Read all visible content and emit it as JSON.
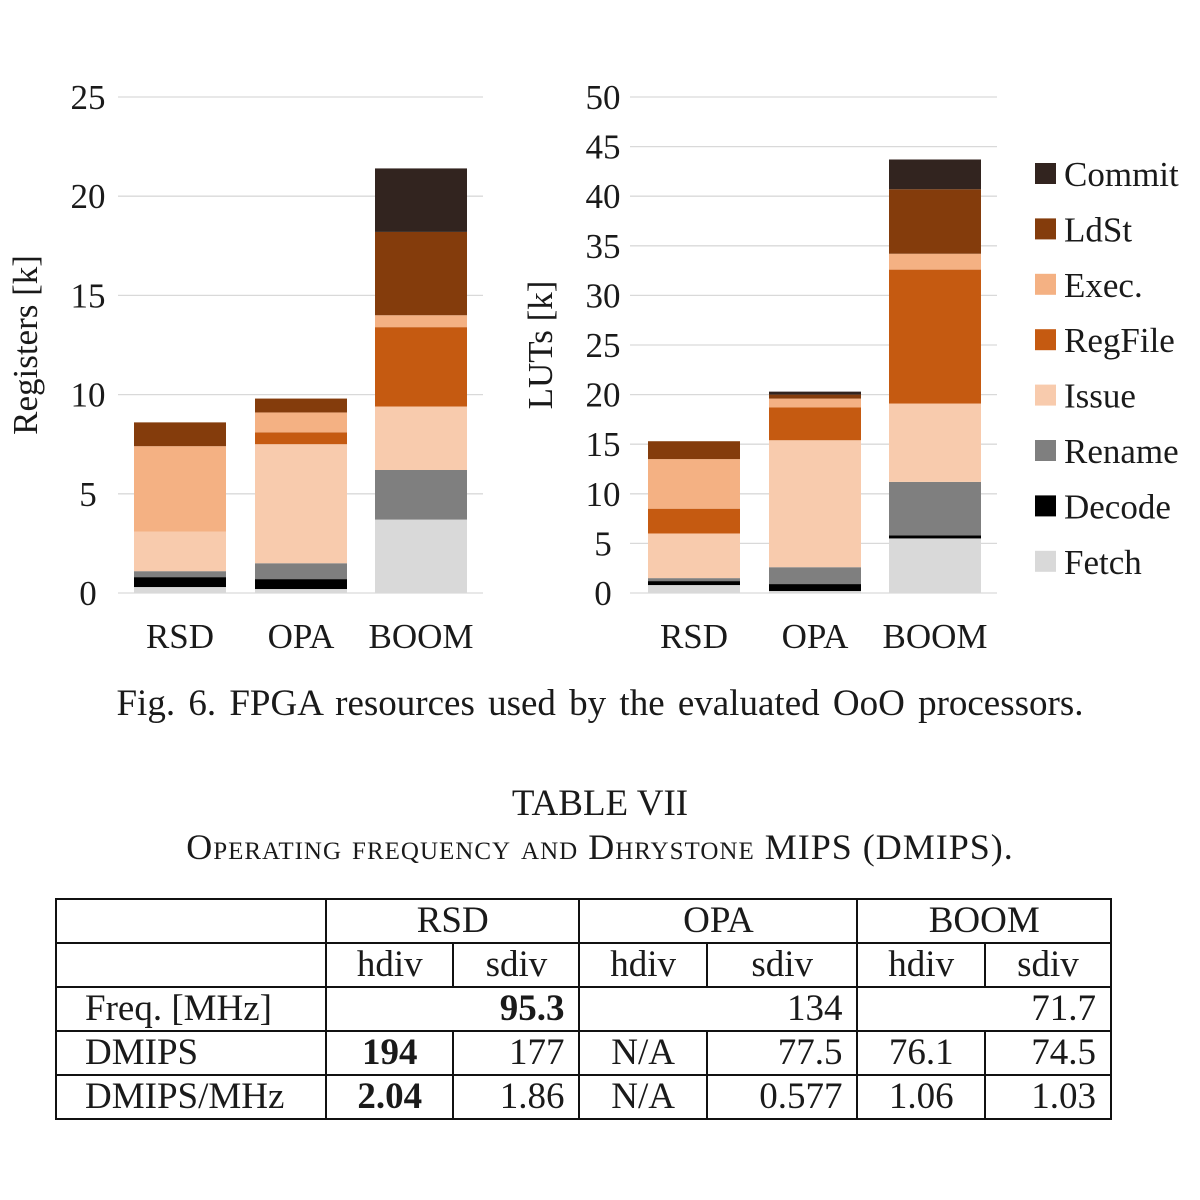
{
  "chart_data": [
    {
      "type": "bar",
      "stacked": true,
      "ylabel": "Registers [k]",
      "ylim": [
        0,
        25
      ],
      "yticks": [
        0,
        5,
        10,
        15,
        20,
        25
      ],
      "categories": [
        "RSD",
        "OPA",
        "BOOM"
      ],
      "grid": true,
      "series": [
        {
          "name": "Fetch",
          "color": "#d9d9d9",
          "values": [
            0.3,
            0.2,
            3.7
          ]
        },
        {
          "name": "Decode",
          "color": "#000000",
          "values": [
            0.5,
            0.5,
            0.0
          ]
        },
        {
          "name": "Rename",
          "color": "#7f7f7f",
          "values": [
            0.3,
            0.8,
            2.5
          ]
        },
        {
          "name": "Issue",
          "color": "#f8cbad",
          "values": [
            2.0,
            6.0,
            3.2
          ]
        },
        {
          "name": "RegFile",
          "color": "#c55a11",
          "values": [
            0.0,
            0.6,
            4.0
          ]
        },
        {
          "name": "Exec.",
          "color": "#f4b183",
          "values": [
            4.3,
            1.0,
            0.6
          ]
        },
        {
          "name": "LdSt",
          "color": "#843c0c",
          "values": [
            1.2,
            0.7,
            4.2
          ]
        },
        {
          "name": "Commit",
          "color": "#32241f",
          "values": [
            0.0,
            0.0,
            3.2
          ]
        }
      ]
    },
    {
      "type": "bar",
      "stacked": true,
      "ylabel": "LUTs [k]",
      "ylim": [
        0,
        50
      ],
      "yticks": [
        0,
        5,
        10,
        15,
        20,
        25,
        30,
        35,
        40,
        45,
        50
      ],
      "categories": [
        "RSD",
        "OPA",
        "BOOM"
      ],
      "grid": true,
      "legend": "right",
      "series": [
        {
          "name": "Fetch",
          "color": "#d9d9d9",
          "values": [
            0.8,
            0.2,
            5.5
          ]
        },
        {
          "name": "Decode",
          "color": "#000000",
          "values": [
            0.4,
            0.7,
            0.3
          ]
        },
        {
          "name": "Rename",
          "color": "#7f7f7f",
          "values": [
            0.3,
            1.7,
            5.4
          ]
        },
        {
          "name": "Issue",
          "color": "#f8cbad",
          "values": [
            4.5,
            12.8,
            7.9
          ]
        },
        {
          "name": "RegFile",
          "color": "#c55a11",
          "values": [
            2.5,
            3.3,
            13.5
          ]
        },
        {
          "name": "Exec.",
          "color": "#f4b183",
          "values": [
            5.0,
            0.9,
            1.6
          ]
        },
        {
          "name": "LdSt",
          "color": "#843c0c",
          "values": [
            1.8,
            0.4,
            6.5
          ]
        },
        {
          "name": "Commit",
          "color": "#32241f",
          "values": [
            0.0,
            0.3,
            3.0
          ]
        }
      ]
    }
  ],
  "legend_order": [
    "Commit",
    "LdSt",
    "Exec.",
    "RegFile",
    "Issue",
    "Rename",
    "Decode",
    "Fetch"
  ],
  "caption": "Fig. 6.  FPGA resources used by the evaluated OoO processors.",
  "table": {
    "title": "TABLE VII",
    "subtitle": "Operating frequency and Dhrystone MIPS (DMIPS).",
    "groups": [
      "RSD",
      "OPA",
      "BOOM"
    ],
    "subheaders": [
      "hdiv",
      "sdiv",
      "hdiv",
      "sdiv",
      "hdiv",
      "sdiv"
    ],
    "rows": [
      {
        "label": "Freq. [MHz]",
        "rsd": "95.3",
        "opa": "134",
        "boom": "71.7"
      },
      {
        "label": "DMIPS",
        "cells": [
          "194",
          "177",
          "N/A",
          "77.5",
          "76.1",
          "74.5"
        ]
      },
      {
        "label": "DMIPS/MHz",
        "cells": [
          "2.04",
          "1.86",
          "N/A",
          "0.577",
          "1.06",
          "1.03"
        ]
      }
    ]
  }
}
